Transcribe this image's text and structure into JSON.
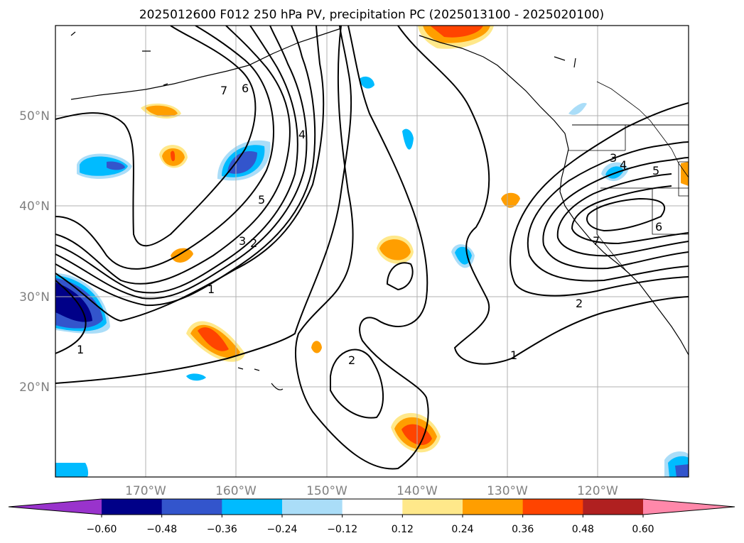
{
  "title": "2025012600 F012 250 hPa PV, precipitation PC (2025013100 - 2025020100)",
  "lat_labels": [
    "50°N",
    "40°N",
    "30°N",
    "20°N"
  ],
  "lon_labels": [
    "170°W",
    "160°W",
    "150°W",
    "140°W",
    "130°W",
    "120°W"
  ],
  "colorbar": {
    "ticks": [
      "−0.60",
      "−0.48",
      "−0.36",
      "−0.24",
      "−0.12",
      "0.12",
      "0.24",
      "0.36",
      "0.48",
      "0.60"
    ],
    "colors": [
      "#9933cc",
      "#000088",
      "#3355cc",
      "#00bbff",
      "#aaddf8",
      "#ffffff",
      "#ffe88a",
      "#ff9e00",
      "#ff4400",
      "#b02020",
      "#ff88aa"
    ]
  },
  "contour_labels": [
    "7",
    "6",
    "5",
    "4",
    "3",
    "2",
    "1",
    "1",
    "2",
    "1",
    "2",
    "3",
    "4",
    "5",
    "6",
    "7"
  ]
}
